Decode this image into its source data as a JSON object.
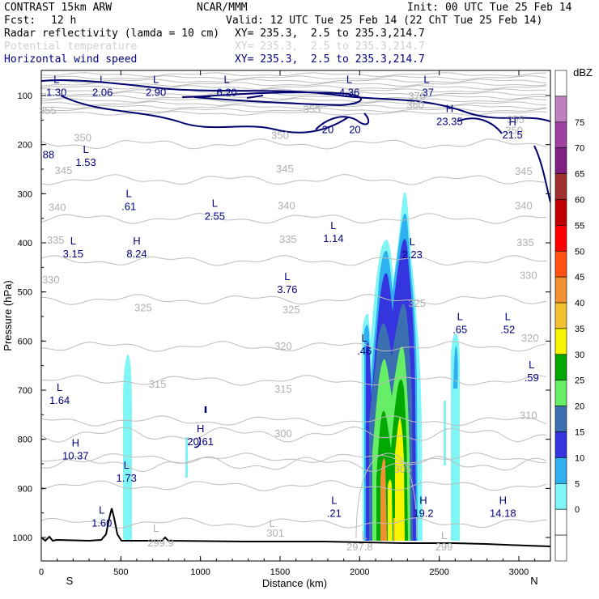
{
  "header": {
    "model": "CONTRAST 15km ARW",
    "org": "NCAR/MMM",
    "init": "Init: 00 UTC Tue 25 Feb 14",
    "fcst_label": "Fcst:",
    "fcst_value": "12 h",
    "valid": "Valid: 12 UTC Tue 25 Feb 14 (22 ChT Tue 25 Feb 14)",
    "fields": [
      {
        "name": "Radar reflectivity (lamda = 10 cm)",
        "xy": "XY= 235.3,  2.5 to 235.3,214.7"
      },
      {
        "name": "Potential temperature",
        "xy": "XY= 235.3,  2.5 to 235.3,214.7"
      },
      {
        "name": "Horizontal wind speed",
        "xy": "XY= 235.3,  2.5 to 235.3,214.7"
      }
    ]
  },
  "chart_data": {
    "type": "heatmap",
    "xlabel": "Distance (km)",
    "ylabel": "Pressure (hPa)",
    "xlim": [
      0,
      3180
    ],
    "ylim": [
      1050,
      55
    ],
    "x_ticks": [
      "0",
      "500",
      "1000",
      "1500",
      "2000",
      "2500",
      "3000"
    ],
    "x_tick_values": [
      0,
      500,
      1000,
      1500,
      2000,
      2500,
      3000
    ],
    "y_ticks": [
      "100",
      "200",
      "300",
      "400",
      "500",
      "600",
      "700",
      "800",
      "900",
      "1000"
    ],
    "y_tick_values": [
      100,
      200,
      300,
      400,
      500,
      600,
      700,
      800,
      900,
      1000
    ],
    "x_end_labels": {
      "left": "S",
      "right": "N"
    },
    "colorbar": {
      "unit": "dBZ",
      "levels": [
        "0",
        "5",
        "10",
        "15",
        "20",
        "25",
        "30",
        "35",
        "40",
        "45",
        "50",
        "55",
        "60",
        "65",
        "70",
        "75"
      ],
      "colors": [
        "#ffffff",
        "#ffffff",
        "#7ff5f5",
        "#2fb0f0",
        "#3535e0",
        "#3a70b0",
        "#66ee66",
        "#00a800",
        "#f5f500",
        "#f0c030",
        "#f09030",
        "#ff5010",
        "#ff0000",
        "#c00000",
        "#a03030",
        "#802080",
        "#a040a0",
        "#c080c0",
        "#ffffff"
      ]
    },
    "theta_labels": [
      {
        "text": "370",
        "x": 2360,
        "p": 100
      },
      {
        "text": "360",
        "x": 2350,
        "p": 118
      },
      {
        "text": "355",
        "x": 2980,
        "p": 148
      },
      {
        "text": "355",
        "x": 1700,
        "p": 127
      },
      {
        "text": "350",
        "x": 2970,
        "p": 170
      },
      {
        "text": "355",
        "x": 40,
        "p": 130
      },
      {
        "text": "350",
        "x": 260,
        "p": 185
      },
      {
        "text": "350",
        "x": 1500,
        "p": 180
      },
      {
        "text": "345",
        "x": 140,
        "p": 252
      },
      {
        "text": "345",
        "x": 1530,
        "p": 248
      },
      {
        "text": "345",
        "x": 3030,
        "p": 253
      },
      {
        "text": "340",
        "x": 100,
        "p": 327
      },
      {
        "text": "340",
        "x": 1540,
        "p": 323
      },
      {
        "text": "340",
        "x": 3030,
        "p": 323
      },
      {
        "text": "335",
        "x": 90,
        "p": 393
      },
      {
        "text": "335",
        "x": 1550,
        "p": 392
      },
      {
        "text": "335",
        "x": 3040,
        "p": 398
      },
      {
        "text": "330",
        "x": 60,
        "p": 474
      },
      {
        "text": "330",
        "x": 3060,
        "p": 465
      },
      {
        "text": "325",
        "x": 640,
        "p": 531
      },
      {
        "text": "325",
        "x": 1570,
        "p": 535
      },
      {
        "text": "325",
        "x": 2360,
        "p": 522
      },
      {
        "text": "320",
        "x": 1520,
        "p": 609
      },
      {
        "text": "320",
        "x": 3070,
        "p": 593
      },
      {
        "text": "315",
        "x": 730,
        "p": 687
      },
      {
        "text": "315",
        "x": 1520,
        "p": 697
      },
      {
        "text": "310",
        "x": 3060,
        "p": 750
      },
      {
        "text": "305",
        "x": 2270,
        "p": 860
      },
      {
        "text": "300",
        "x": 1520,
        "p": 787
      },
      {
        "text": "299.9",
        "x": 750,
        "p": 1010
      },
      {
        "text": "301",
        "x": 1470,
        "p": 990
      },
      {
        "text": "297.8",
        "x": 2000,
        "p": 1018
      },
      {
        "text": "299",
        "x": 2530,
        "p": 1018
      }
    ],
    "theta_extrema": [
      {
        "text": "L",
        "x": 720,
        "p": 980
      },
      {
        "text": "L",
        "x": 1450,
        "p": 970
      },
      {
        "text": "L",
        "x": 2030,
        "p": 995
      },
      {
        "text": "L",
        "x": 2530,
        "p": 995
      }
    ],
    "wind_labels": [
      {
        "text": "20",
        "x": 1800,
        "p": 168
      },
      {
        "text": "20",
        "x": 1970,
        "p": 168
      }
    ],
    "wind_extrema": [
      {
        "mark": "L",
        "value": "1.30",
        "x": 95,
        "p": 78
      },
      {
        "mark": "L",
        "value": "2.06",
        "x": 385,
        "p": 78
      },
      {
        "mark": "L",
        "value": "2.90",
        "x": 720,
        "p": 78
      },
      {
        "mark": "L",
        "value": "6.20",
        "x": 1165,
        "p": 78
      },
      {
        "mark": "L",
        "value": "4.36",
        "x": 1935,
        "p": 78
      },
      {
        "mark": "L",
        "value": ".37",
        "x": 2420,
        "p": 78
      },
      {
        "mark": "H",
        "value": "23.35",
        "x": 2565,
        "p": 137
      },
      {
        "mark": "H",
        "value": "21.5",
        "x": 2960,
        "p": 164
      },
      {
        "mark": "",
        "value": "88",
        "x": 45,
        "p": 205
      },
      {
        "mark": "L",
        "value": "1.53",
        "x": 280,
        "p": 220
      },
      {
        "mark": "L",
        "value": ".61",
        "x": 550,
        "p": 310
      },
      {
        "mark": "L",
        "value": "2.55",
        "x": 1090,
        "p": 330
      },
      {
        "mark": "L",
        "value": "1.14",
        "x": 1835,
        "p": 375
      },
      {
        "mark": "L",
        "value": "2.23",
        "x": 2330,
        "p": 408
      },
      {
        "mark": "L",
        "value": "3.15",
        "x": 200,
        "p": 407
      },
      {
        "mark": "H",
        "value": "8.24",
        "x": 600,
        "p": 407
      },
      {
        "mark": "L",
        "value": "3.76",
        "x": 1545,
        "p": 479
      },
      {
        "mark": "L",
        "value": ".65",
        "x": 2630,
        "p": 561
      },
      {
        "mark": "L",
        "value": ".52",
        "x": 2930,
        "p": 561
      },
      {
        "mark": "L",
        "value": ".46",
        "x": 2030,
        "p": 604
      },
      {
        "mark": "L",
        "value": ".59",
        "x": 3080,
        "p": 659
      },
      {
        "mark": "L",
        "value": "1.64",
        "x": 115,
        "p": 705
      },
      {
        "mark": "H",
        "value": "20.61",
        "x": 1000,
        "p": 789
      },
      {
        "mark": "H",
        "value": "10.37",
        "x": 215,
        "p": 818
      },
      {
        "mark": "L",
        "value": "1.73",
        "x": 535,
        "p": 863
      },
      {
        "mark": "L",
        "value": ".21",
        "x": 1840,
        "p": 935
      },
      {
        "mark": "H",
        "value": "19.2",
        "x": 2400,
        "p": 935
      },
      {
        "mark": "H",
        "value": "14.18",
        "x": 2900,
        "p": 935
      },
      {
        "mark": "L",
        "value": "1.60",
        "x": 380,
        "p": 955
      }
    ]
  }
}
